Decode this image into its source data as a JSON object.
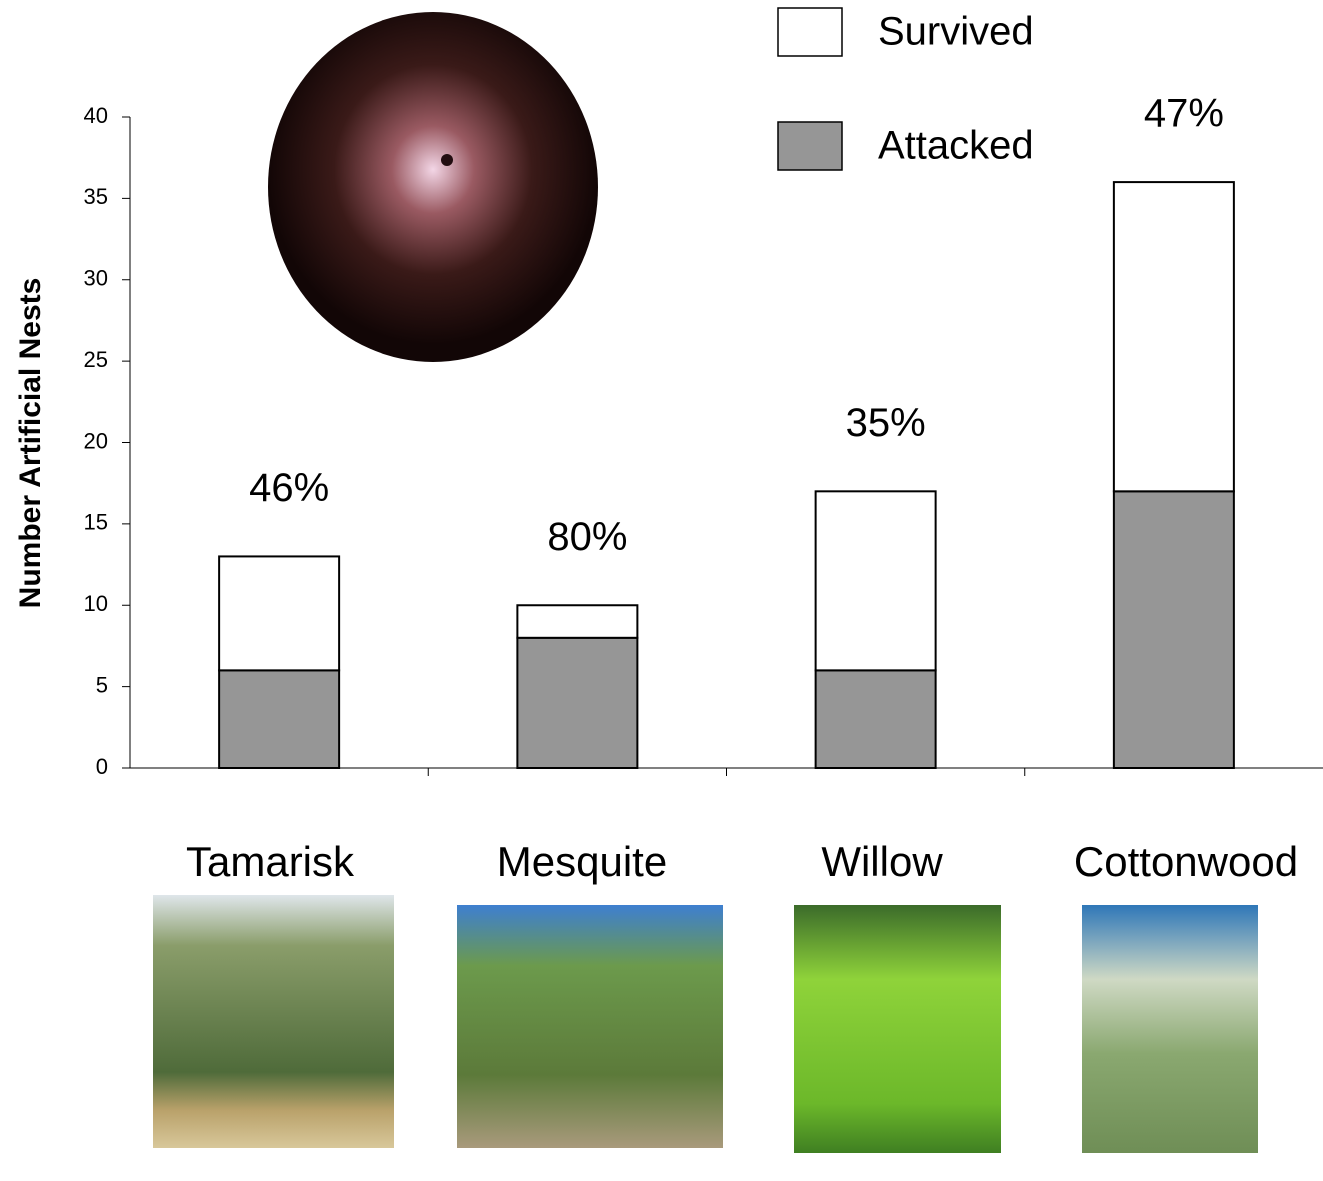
{
  "chart_data": {
    "type": "stacked_bar",
    "y_label": "Number Artificial Nests",
    "categories": [
      "Tamarisk",
      "Mesquite",
      "Willow",
      "Cottonwood"
    ],
    "series": [
      {
        "name": "Attacked",
        "color": "#969696",
        "values": [
          6,
          8,
          6,
          17
        ]
      },
      {
        "name": "Survived",
        "color": "#ffffff",
        "values": [
          7,
          2,
          11,
          19
        ]
      }
    ],
    "annotations": [
      "46%",
      "80%",
      "35%",
      "47%"
    ],
    "ylim": [
      0,
      40
    ],
    "yticks": [
      0,
      5,
      10,
      15,
      20,
      25,
      30,
      35,
      40
    ],
    "grid": false
  }
}
